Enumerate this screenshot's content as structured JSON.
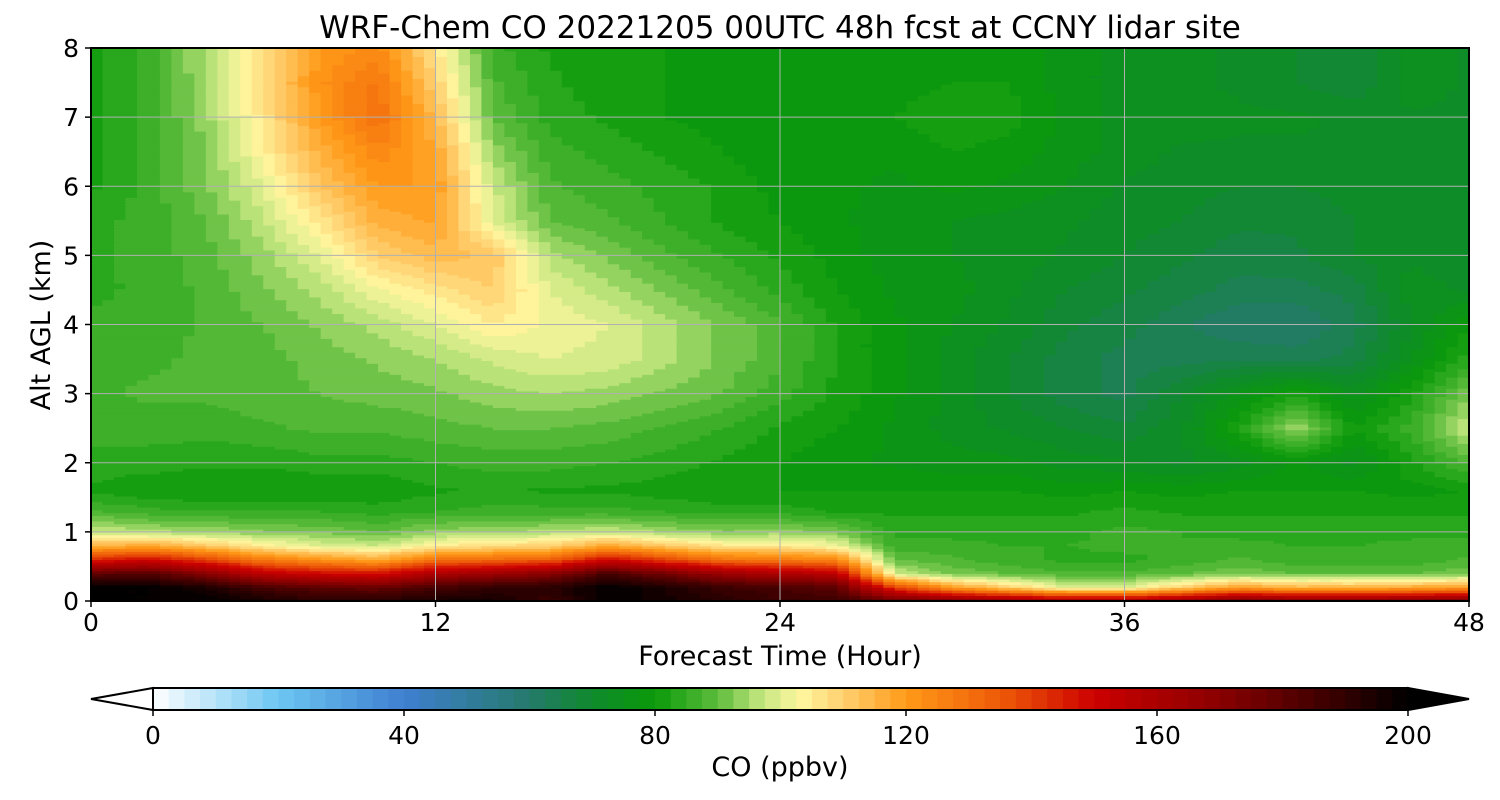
{
  "chart_data": {
    "type": "heatmap",
    "title": "WRF-Chem CO  20221205 00UTC 48h fcst at CCNY lidar site",
    "xlabel": "Forecast Time (Hour)",
    "ylabel": "Alt AGL (km)",
    "xlim": [
      0,
      48
    ],
    "ylim": [
      0,
      8
    ],
    "xticks": [
      0,
      12,
      24,
      36,
      48
    ],
    "yticks": [
      0,
      1,
      2,
      3,
      4,
      5,
      6,
      7,
      8
    ],
    "grid": true,
    "colorbar": {
      "label": "CO  (ppbv)",
      "range": [
        0,
        200
      ],
      "ticks": [
        0,
        40,
        80,
        120,
        160,
        200
      ],
      "extend": "both",
      "colors": [
        [
          0,
          "#ffffff"
        ],
        [
          20,
          "#6cc6f2"
        ],
        [
          40,
          "#3f7fd0"
        ],
        [
          60,
          "#257a6c"
        ],
        [
          70,
          "#0f8a2c"
        ],
        [
          80,
          "#0a9a0a"
        ],
        [
          90,
          "#5cbc3c"
        ],
        [
          97,
          "#c4e680"
        ],
        [
          103,
          "#fff7a0"
        ],
        [
          110,
          "#ffd070"
        ],
        [
          120,
          "#ff9a18"
        ],
        [
          135,
          "#ee5a08"
        ],
        [
          150,
          "#cc0000"
        ],
        [
          170,
          "#8a0000"
        ],
        [
          190,
          "#300000"
        ],
        [
          200,
          "#000000"
        ]
      ]
    },
    "x": [
      0,
      2,
      4,
      6,
      8,
      10,
      12,
      14,
      16,
      18,
      20,
      22,
      24,
      26,
      28,
      30,
      32,
      34,
      36,
      38,
      40,
      42,
      44,
      46,
      48
    ],
    "y": [
      0,
      0.2,
      0.4,
      0.6,
      0.8,
      1.0,
      1.3,
      1.6,
      2.0,
      2.5,
      3.0,
      3.5,
      4.0,
      4.5,
      5.0,
      5.5,
      6.0,
      6.5,
      7.0,
      7.5,
      8.0
    ],
    "z": [
      [
        200,
        200,
        200,
        196,
        192,
        192,
        196,
        196,
        188,
        200,
        196,
        192,
        188,
        188,
        180,
        175,
        170,
        165,
        165,
        170,
        178,
        175,
        175,
        175,
        178
      ],
      [
        200,
        200,
        195,
        185,
        180,
        178,
        185,
        190,
        192,
        200,
        195,
        188,
        185,
        180,
        140,
        120,
        110,
        100,
        100,
        110,
        120,
        115,
        115,
        118,
        120
      ],
      [
        180,
        182,
        170,
        155,
        150,
        148,
        160,
        165,
        170,
        185,
        175,
        165,
        160,
        155,
        98,
        92,
        90,
        88,
        88,
        90,
        92,
        90,
        90,
        90,
        92
      ],
      [
        145,
        150,
        140,
        128,
        122,
        118,
        130,
        132,
        135,
        150,
        140,
        130,
        128,
        125,
        90,
        88,
        86,
        84,
        84,
        86,
        88,
        86,
        86,
        86,
        88
      ],
      [
        115,
        118,
        112,
        105,
        100,
        98,
        105,
        108,
        110,
        118,
        112,
        106,
        106,
        102,
        86,
        86,
        85,
        85,
        86,
        85,
        86,
        85,
        85,
        86,
        86
      ],
      [
        98,
        96,
        95,
        93,
        92,
        90,
        94,
        95,
        96,
        98,
        95,
        93,
        94,
        92,
        84,
        84,
        84,
        84,
        86,
        85,
        84,
        84,
        84,
        84,
        84
      ],
      [
        88,
        86,
        85,
        85,
        85,
        84,
        85,
        86,
        86,
        86,
        85,
        84,
        84,
        82,
        82,
        82,
        82,
        82,
        83,
        82,
        82,
        82,
        82,
        82,
        82
      ],
      [
        82,
        80,
        80,
        80,
        80,
        80,
        82,
        83,
        82,
        82,
        81,
        80,
        80,
        80,
        80,
        80,
        80,
        79,
        80,
        79,
        80,
        80,
        80,
        79,
        80
      ],
      [
        84,
        84,
        83,
        83,
        84,
        84,
        85,
        86,
        86,
        85,
        84,
        82,
        80,
        78,
        77,
        76,
        76,
        74,
        73,
        72,
        74,
        78,
        74,
        82,
        88
      ],
      [
        86,
        86,
        86,
        87,
        88,
        88,
        89,
        90,
        90,
        89,
        87,
        85,
        82,
        80,
        77,
        74,
        72,
        70,
        68,
        72,
        82,
        95,
        80,
        86,
        98
      ],
      [
        87,
        88,
        88,
        89,
        90,
        91,
        92,
        94,
        95,
        94,
        92,
        90,
        86,
        82,
        78,
        74,
        70,
        66,
        64,
        70,
        76,
        82,
        74,
        82,
        92
      ],
      [
        86,
        87,
        88,
        89,
        91,
        93,
        95,
        98,
        100,
        99,
        96,
        92,
        88,
        82,
        78,
        74,
        70,
        66,
        64,
        64,
        65,
        64,
        66,
        75,
        84
      ],
      [
        86,
        86,
        88,
        90,
        93,
        96,
        100,
        105,
        102,
        100,
        96,
        92,
        88,
        82,
        78,
        75,
        72,
        68,
        66,
        63,
        60,
        60,
        64,
        72,
        80
      ],
      [
        84,
        86,
        88,
        92,
        96,
        102,
        106,
        110,
        100,
        96,
        92,
        88,
        84,
        80,
        77,
        76,
        73,
        70,
        68,
        66,
        64,
        64,
        66,
        74,
        72
      ],
      [
        84,
        86,
        89,
        94,
        100,
        110,
        114,
        112,
        96,
        92,
        88,
        85,
        82,
        79,
        76,
        75,
        74,
        72,
        70,
        68,
        66,
        67,
        70,
        72,
        70
      ],
      [
        84,
        86,
        90,
        97,
        106,
        116,
        118,
        100,
        90,
        88,
        85,
        82,
        80,
        78,
        76,
        75,
        74,
        73,
        71,
        70,
        68,
        68,
        70,
        70,
        70
      ],
      [
        82,
        86,
        92,
        100,
        112,
        120,
        120,
        98,
        88,
        86,
        84,
        82,
        79,
        78,
        77,
        78,
        77,
        75,
        72,
        71,
        70,
        70,
        71,
        70,
        71
      ],
      [
        82,
        86,
        92,
        104,
        116,
        124,
        118,
        94,
        86,
        84,
        82,
        80,
        78,
        78,
        78,
        80,
        79,
        76,
        74,
        72,
        72,
        72,
        72,
        72,
        72
      ],
      [
        82,
        86,
        94,
        106,
        120,
        130,
        114,
        90,
        84,
        82,
        80,
        79,
        78,
        78,
        80,
        82,
        81,
        77,
        74,
        74,
        73,
        73,
        72,
        72,
        72
      ],
      [
        82,
        86,
        95,
        108,
        122,
        128,
        110,
        88,
        83,
        81,
        80,
        79,
        78,
        78,
        79,
        80,
        80,
        76,
        74,
        73,
        72,
        70,
        68,
        74,
        72
      ],
      [
        82,
        86,
        96,
        108,
        120,
        124,
        106,
        86,
        82,
        81,
        80,
        79,
        78,
        78,
        78,
        79,
        79,
        76,
        74,
        73,
        72,
        70,
        68,
        74,
        72
      ]
    ]
  }
}
